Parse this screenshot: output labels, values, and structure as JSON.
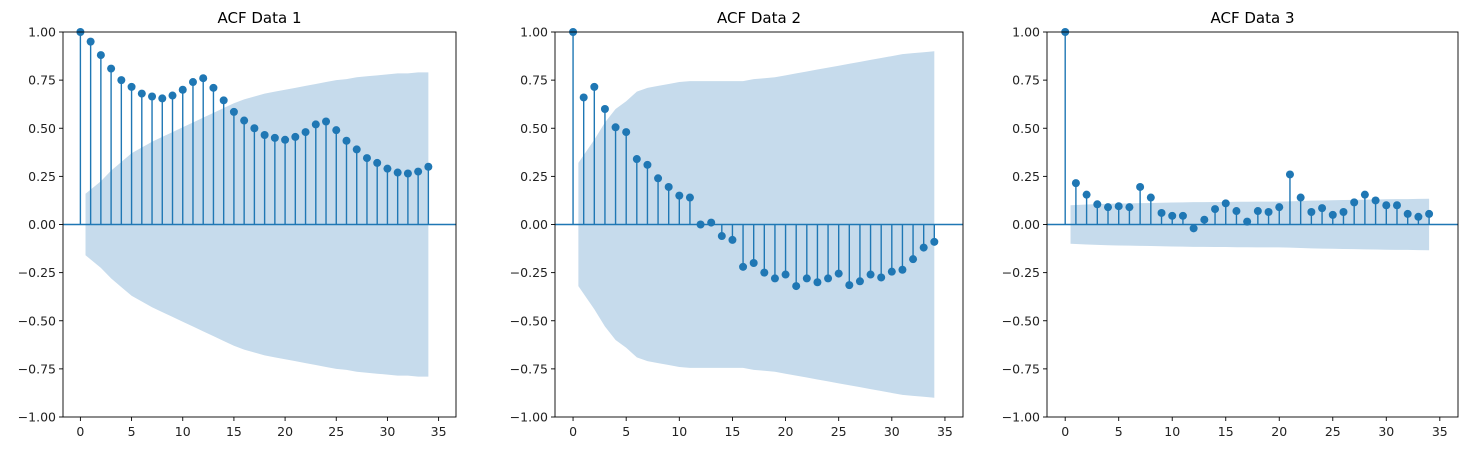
{
  "chart_data": [
    {
      "type": "stem",
      "title": "ACF Data 1",
      "xlabel": "",
      "ylabel": "",
      "xlim": [
        -1.7,
        36.7
      ],
      "ylim": [
        -1.0,
        1.0
      ],
      "xticks": [
        "0",
        "5",
        "10",
        "15",
        "20",
        "25",
        "30",
        "35"
      ],
      "yticks": [
        "−1.00",
        "−0.75",
        "−0.50",
        "−0.25",
        "0.00",
        "0.25",
        "0.50",
        "0.75",
        "1.00"
      ],
      "lags": [
        0,
        1,
        2,
        3,
        4,
        5,
        6,
        7,
        8,
        9,
        10,
        11,
        12,
        13,
        14,
        15,
        16,
        17,
        18,
        19,
        20,
        21,
        22,
        23,
        24,
        25,
        26,
        27,
        28,
        29,
        30,
        31,
        32,
        33,
        34
      ],
      "values": [
        1.0,
        0.95,
        0.88,
        0.81,
        0.75,
        0.715,
        0.68,
        0.665,
        0.655,
        0.67,
        0.7,
        0.74,
        0.76,
        0.71,
        0.645,
        0.585,
        0.54,
        0.5,
        0.465,
        0.45,
        0.44,
        0.455,
        0.48,
        0.52,
        0.535,
        0.49,
        0.435,
        0.39,
        0.345,
        0.32,
        0.29,
        0.27,
        0.265,
        0.275,
        0.3
      ],
      "confint": [
        0.0,
        0.16,
        0.225,
        0.28,
        0.325,
        0.37,
        0.4,
        0.43,
        0.455,
        0.48,
        0.505,
        0.53,
        0.555,
        0.58,
        0.605,
        0.63,
        0.65,
        0.665,
        0.68,
        0.69,
        0.7,
        0.71,
        0.72,
        0.73,
        0.74,
        0.75,
        0.755,
        0.765,
        0.77,
        0.775,
        0.78,
        0.785,
        0.785,
        0.79,
        0.79
      ],
      "colors": {
        "stem": "#1f77b4",
        "band": "#c6dbec",
        "baseline": "#1f77b4"
      }
    },
    {
      "type": "stem",
      "title": "ACF Data 2",
      "xlabel": "",
      "ylabel": "",
      "xlim": [
        -1.7,
        36.7
      ],
      "ylim": [
        -1.0,
        1.0
      ],
      "xticks": [
        "0",
        "5",
        "10",
        "15",
        "20",
        "25",
        "30",
        "35"
      ],
      "yticks": [
        "−1.00",
        "−0.75",
        "−0.50",
        "−0.25",
        "0.00",
        "0.25",
        "0.50",
        "0.75",
        "1.00"
      ],
      "lags": [
        0,
        1,
        2,
        3,
        4,
        5,
        6,
        7,
        8,
        9,
        10,
        11,
        12,
        13,
        14,
        15,
        16,
        17,
        18,
        19,
        20,
        21,
        22,
        23,
        24,
        25,
        26,
        27,
        28,
        29,
        30,
        31,
        32,
        33,
        34
      ],
      "values": [
        1.0,
        0.66,
        0.715,
        0.6,
        0.505,
        0.48,
        0.34,
        0.31,
        0.24,
        0.195,
        0.15,
        0.14,
        0.0,
        0.01,
        -0.06,
        -0.08,
        -0.22,
        -0.2,
        -0.25,
        -0.28,
        -0.26,
        -0.32,
        -0.28,
        -0.3,
        -0.28,
        -0.255,
        -0.315,
        -0.295,
        -0.26,
        -0.275,
        -0.245,
        -0.235,
        -0.18,
        -0.12,
        -0.09
      ],
      "confint": [
        0.0,
        0.32,
        0.44,
        0.53,
        0.6,
        0.64,
        0.69,
        0.71,
        0.72,
        0.73,
        0.74,
        0.745,
        0.745,
        0.745,
        0.745,
        0.745,
        0.745,
        0.755,
        0.76,
        0.765,
        0.775,
        0.785,
        0.795,
        0.805,
        0.815,
        0.825,
        0.835,
        0.845,
        0.855,
        0.865,
        0.875,
        0.885,
        0.89,
        0.895,
        0.9
      ],
      "colors": {
        "stem": "#1f77b4",
        "band": "#c6dbec",
        "baseline": "#1f77b4"
      }
    },
    {
      "type": "stem",
      "title": "ACF Data 3",
      "xlabel": "",
      "ylabel": "",
      "xlim": [
        -1.7,
        36.7
      ],
      "ylim": [
        -1.0,
        1.0
      ],
      "xticks": [
        "0",
        "5",
        "10",
        "15",
        "20",
        "25",
        "30",
        "35"
      ],
      "yticks": [
        "−1.00",
        "−0.75",
        "−0.50",
        "−0.25",
        "0.00",
        "0.25",
        "0.50",
        "0.75",
        "1.00"
      ],
      "lags": [
        0,
        1,
        2,
        3,
        4,
        5,
        6,
        7,
        8,
        9,
        10,
        11,
        12,
        13,
        14,
        15,
        16,
        17,
        18,
        19,
        20,
        21,
        22,
        23,
        24,
        25,
        26,
        27,
        28,
        29,
        30,
        31,
        32,
        33,
        34
      ],
      "values": [
        1.0,
        0.215,
        0.155,
        0.105,
        0.09,
        0.095,
        0.09,
        0.195,
        0.14,
        0.06,
        0.045,
        0.045,
        -0.02,
        0.025,
        0.08,
        0.11,
        0.07,
        0.015,
        0.07,
        0.065,
        0.09,
        0.26,
        0.14,
        0.065,
        0.085,
        0.05,
        0.065,
        0.115,
        0.155,
        0.125,
        0.1,
        0.1,
        0.055,
        0.04,
        0.055
      ],
      "confint": [
        0.0,
        0.1,
        0.104,
        0.106,
        0.108,
        0.109,
        0.11,
        0.111,
        0.112,
        0.113,
        0.114,
        0.115,
        0.116,
        0.116,
        0.117,
        0.117,
        0.118,
        0.118,
        0.119,
        0.119,
        0.119,
        0.12,
        0.122,
        0.124,
        0.125,
        0.126,
        0.127,
        0.128,
        0.129,
        0.13,
        0.131,
        0.132,
        0.132,
        0.133,
        0.134
      ],
      "colors": {
        "stem": "#1f77b4",
        "band": "#c6dbec",
        "baseline": "#1f77b4"
      }
    }
  ]
}
